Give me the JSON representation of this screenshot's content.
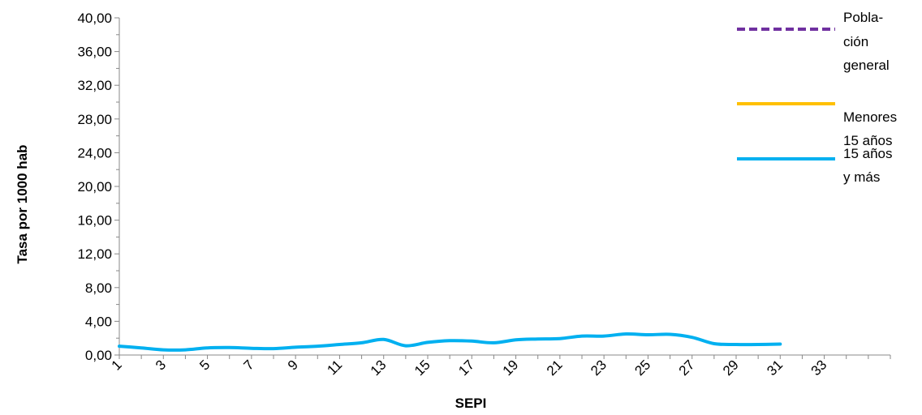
{
  "chart_data": {
    "type": "line",
    "xlabel": "SEPI",
    "ylabel": "Tasa por 1000 hab",
    "x_range": [
      1,
      36
    ],
    "ylim": [
      0,
      40
    ],
    "y_ticks": [
      "0,00",
      "4,00",
      "8,00",
      "12,00",
      "16,00",
      "20,00",
      "24,00",
      "28,00",
      "32,00",
      "36,00",
      "40,00"
    ],
    "x_tick_labels": [
      "1",
      "3",
      "5",
      "7",
      "9",
      "11",
      "13",
      "15",
      "17",
      "19",
      "21",
      "23",
      "25",
      "27",
      "29",
      "31",
      "33"
    ],
    "grid": false,
    "legend_position": "right",
    "series": [
      {
        "name": "Pobla-\nción\ngeneral",
        "name_lines": [
          "Pobla-",
          "ción",
          "general"
        ],
        "color": "#7030a0",
        "dash": true,
        "x": [],
        "values": []
      },
      {
        "name": "Menores\n15 años",
        "name_lines": [
          "Menores",
          "15 años"
        ],
        "color": "#ffc000",
        "dash": false,
        "x": [],
        "values": []
      },
      {
        "name": "15 años\ny más",
        "name_lines": [
          "15 años",
          "y más"
        ],
        "color": "#00b0f0",
        "dash": false,
        "x": [
          1,
          2,
          3,
          4,
          5,
          6,
          7,
          8,
          9,
          10,
          11,
          12,
          13,
          14,
          15,
          16,
          17,
          18,
          19,
          20,
          21,
          22,
          23,
          24,
          25,
          26,
          27,
          28,
          29,
          30,
          31
        ],
        "values": [
          1.05,
          0.85,
          0.62,
          0.62,
          0.85,
          0.88,
          0.8,
          0.76,
          0.92,
          1.05,
          1.25,
          1.45,
          1.85,
          1.1,
          1.5,
          1.7,
          1.65,
          1.45,
          1.8,
          1.9,
          1.95,
          2.25,
          2.25,
          2.5,
          2.4,
          2.45,
          2.1,
          1.35,
          1.25,
          1.25,
          1.3
        ]
      }
    ]
  }
}
